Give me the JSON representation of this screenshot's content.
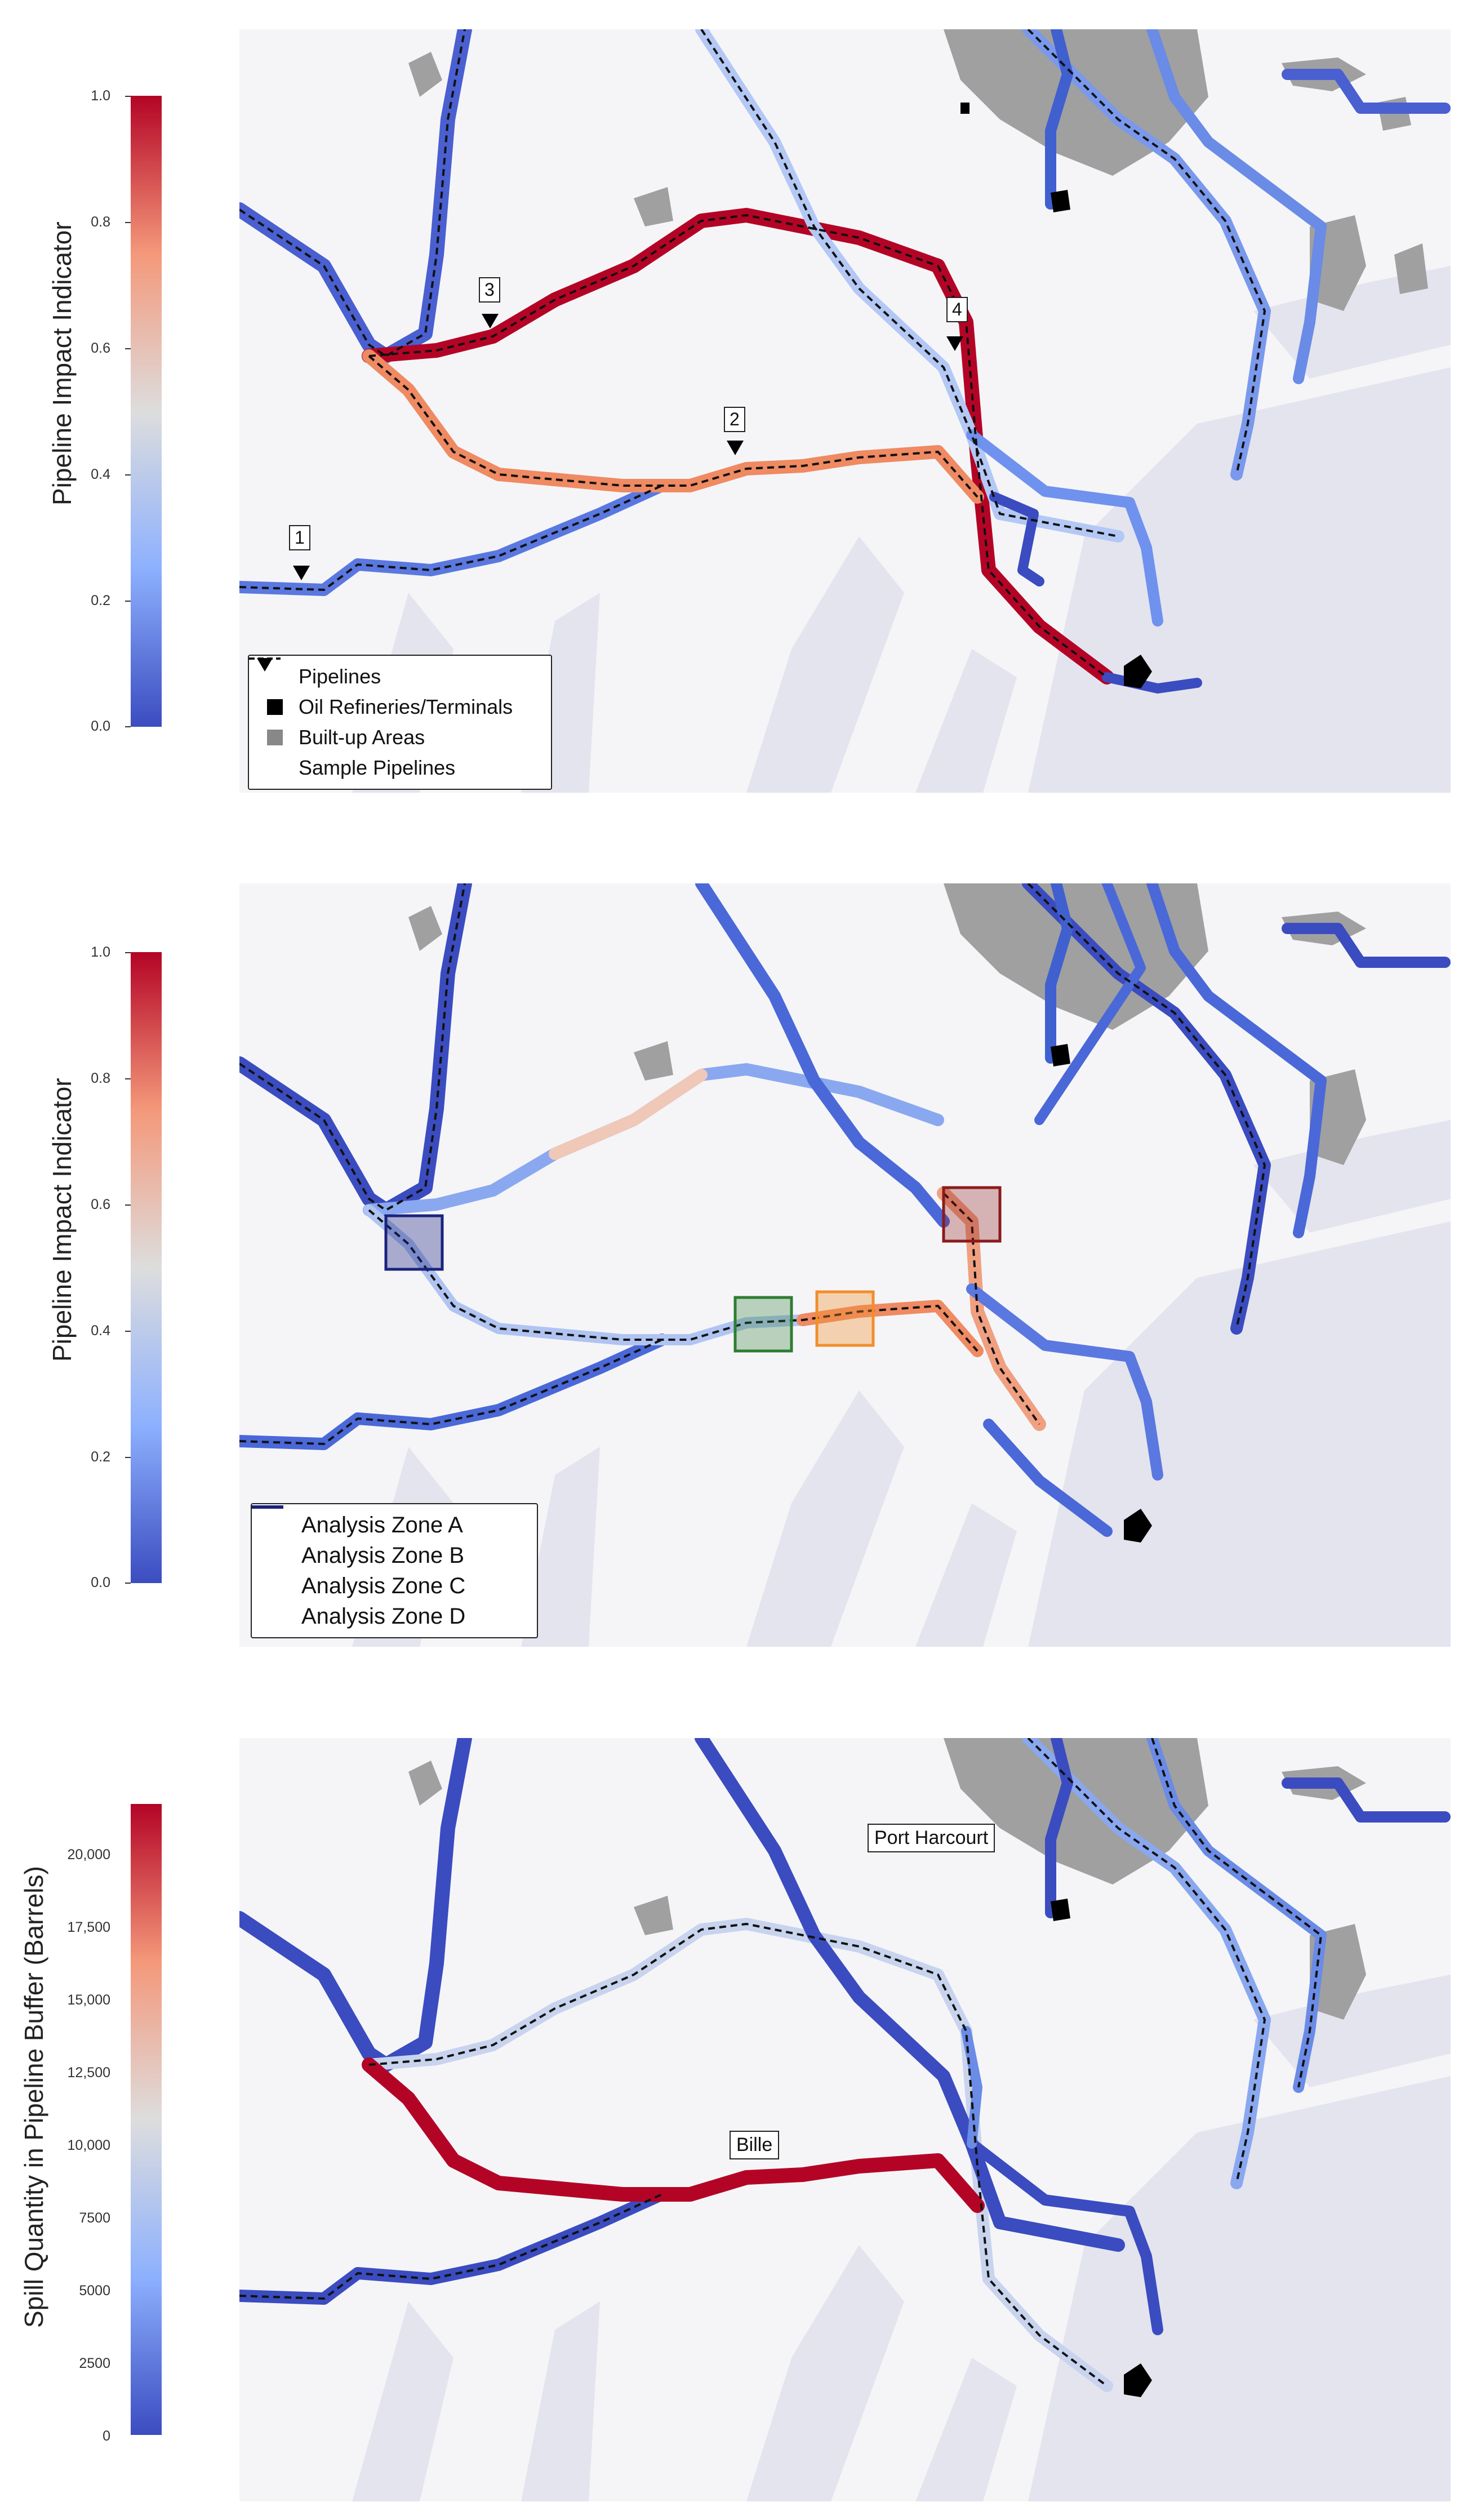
{
  "panels": [
    {
      "id": "panel-1",
      "colorbar": {
        "label": "Pipeline Impact Indicator",
        "ticks": [
          "1.0",
          "0.8",
          "0.6",
          "0.4",
          "0.2",
          "0.0"
        ]
      },
      "legend": [
        {
          "symbol": "dashed-line",
          "label": "Pipelines"
        },
        {
          "symbol": "black-square",
          "label": "Oil Refineries/Terminals"
        },
        {
          "symbol": "gray-square",
          "label": "Built-up Areas"
        },
        {
          "symbol": "black-triangle",
          "label": "Sample Pipelines"
        }
      ],
      "sample_labels": [
        "1",
        "2",
        "3",
        "4"
      ]
    },
    {
      "id": "panel-2",
      "colorbar": {
        "label": "Pipeline Impact Indicator",
        "ticks": [
          "1.0",
          "0.8",
          "0.6",
          "0.4",
          "0.2",
          "0.0"
        ]
      },
      "legend": [
        {
          "color": "#8b1a1a",
          "label": "Analysis Zone A"
        },
        {
          "color": "#f28e2b",
          "label": "Analysis Zone B"
        },
        {
          "color": "#2e7d32",
          "label": "Analysis Zone C"
        },
        {
          "color": "#1a237e",
          "label": "Analysis Zone D"
        }
      ]
    },
    {
      "id": "panel-3",
      "colorbar": {
        "label": "Spill Quantity in Pipeline Buffer (Barrels)",
        "ticks": [
          "20,000",
          "17,500",
          "15,000",
          "12,500",
          "10,000",
          "7500",
          "5000",
          "2500",
          "0"
        ]
      },
      "place_labels": [
        "Port Harcourt",
        "Bille"
      ]
    }
  ],
  "colors": {
    "low": "#3b4cc0",
    "mid": "#dddddd",
    "high": "#b40426",
    "builtup": "#a0a0a0",
    "water": "#e4e4ee",
    "land": "#f5f5f8"
  }
}
